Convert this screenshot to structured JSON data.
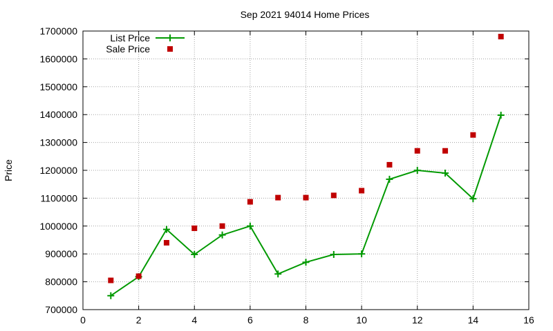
{
  "chart_data": {
    "type": "line",
    "title": "Sep 2021 94014 Home Prices",
    "xlabel": "",
    "ylabel": "Price",
    "xlim": [
      0,
      16
    ],
    "ylim": [
      700000,
      1700000
    ],
    "xticks": [
      0,
      2,
      4,
      6,
      8,
      10,
      12,
      14,
      16
    ],
    "yticks": [
      700000,
      800000,
      900000,
      1000000,
      1100000,
      1200000,
      1300000,
      1400000,
      1500000,
      1600000,
      1700000
    ],
    "grid": true,
    "legend_position": "top-left",
    "series": [
      {
        "name": "List Price",
        "kind": "line-points",
        "marker": "plus",
        "color": "#009900",
        "x": [
          1,
          2,
          3,
          4,
          5,
          6,
          7,
          8,
          9,
          10,
          11,
          12,
          13,
          14,
          15
        ],
        "y": [
          750000,
          818000,
          988000,
          898000,
          968000,
          1000000,
          828000,
          870000,
          898000,
          900000,
          1168000,
          1200000,
          1190000,
          1098000,
          1398000
        ]
      },
      {
        "name": "Sale Price",
        "kind": "points",
        "marker": "square",
        "color": "#c00000",
        "x": [
          1,
          2,
          3,
          4,
          5,
          6,
          7,
          8,
          9,
          10,
          11,
          12,
          13,
          14,
          15
        ],
        "y": [
          805000,
          820000,
          940000,
          992000,
          1000000,
          1087000,
          1102000,
          1102000,
          1110000,
          1127000,
          1220000,
          1270000,
          1270000,
          1327000,
          1680000
        ]
      }
    ]
  }
}
